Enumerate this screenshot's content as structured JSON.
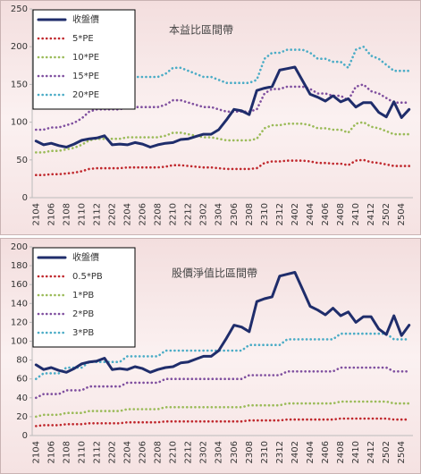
{
  "chart_data": [
    {
      "type": "line",
      "title": "本益比區間帶",
      "categories": [
        "2104",
        null,
        "2106",
        null,
        "2108",
        null,
        "2110",
        null,
        "2112",
        null,
        "2202",
        null,
        "2204",
        null,
        "2206",
        null,
        "2208",
        null,
        "2210",
        null,
        "2212",
        null,
        "2302",
        null,
        "2304",
        null,
        "2306",
        null,
        "2308",
        null,
        "2310",
        null,
        "2312",
        null,
        "2402",
        null,
        "2404",
        null,
        "2406",
        null,
        "2408",
        null,
        "2410",
        null,
        "2412",
        null,
        "2502",
        null,
        "2504",
        null
      ],
      "ylim": [
        0,
        250
      ],
      "yticks": [
        0,
        50,
        100,
        150,
        200,
        250
      ],
      "grid": false,
      "legend": "top-left",
      "series": [
        {
          "name": "收盤價",
          "color": "#1f2d6b",
          "style": "solid",
          "values": [
            75,
            70,
            72,
            69,
            67,
            71,
            76,
            78,
            79,
            82,
            70,
            71,
            70,
            73,
            71,
            67,
            70,
            72,
            73,
            77,
            78,
            81,
            84,
            84,
            90,
            103,
            117,
            115,
            110,
            142,
            145,
            147,
            169,
            171,
            173,
            155,
            137,
            133,
            128,
            135,
            127,
            131,
            120,
            126,
            126,
            113,
            107,
            127,
            106,
            117
          ]
        },
        {
          "name": "5*PE",
          "color": "#c0282d",
          "style": "dotted",
          "values": [
            30,
            30,
            31,
            31,
            32,
            33,
            35,
            38,
            39,
            39,
            39,
            39,
            40,
            40,
            40,
            40,
            40,
            41,
            43,
            43,
            42,
            41,
            40,
            40,
            39,
            38,
            38,
            38,
            38,
            39,
            46,
            48,
            48,
            49,
            49,
            49,
            48,
            46,
            46,
            45,
            45,
            43,
            49,
            50,
            47,
            46,
            44,
            42,
            42,
            42
          ]
        },
        {
          "name": "10*PE",
          "color": "#9bbb59",
          "style": "dotted",
          "values": [
            60,
            60,
            62,
            62,
            64,
            66,
            70,
            76,
            78,
            78,
            78,
            78,
            80,
            80,
            80,
            80,
            80,
            82,
            86,
            86,
            84,
            82,
            80,
            80,
            78,
            76,
            76,
            76,
            76,
            78,
            92,
            96,
            96,
            98,
            98,
            98,
            96,
            92,
            92,
            90,
            90,
            86,
            98,
            100,
            94,
            92,
            88,
            84,
            84,
            84
          ]
        },
        {
          "name": "15*PE",
          "color": "#7f4f9f",
          "style": "dotted",
          "values": [
            90,
            90,
            93,
            93,
            96,
            99,
            105,
            114,
            117,
            117,
            117,
            117,
            120,
            120,
            120,
            120,
            120,
            123,
            129,
            129,
            126,
            123,
            120,
            120,
            117,
            114,
            114,
            114,
            114,
            117,
            138,
            144,
            144,
            147,
            147,
            147,
            144,
            138,
            138,
            135,
            135,
            129,
            147,
            150,
            141,
            138,
            132,
            126,
            126,
            126
          ]
        },
        {
          "name": "20*PE",
          "color": "#4bacc6",
          "style": "dotted",
          "values": [
            120,
            120,
            124,
            124,
            128,
            132,
            140,
            152,
            156,
            156,
            156,
            156,
            160,
            160,
            160,
            160,
            160,
            164,
            172,
            172,
            168,
            164,
            160,
            160,
            156,
            152,
            152,
            152,
            152,
            156,
            184,
            192,
            192,
            196,
            196,
            196,
            192,
            184,
            184,
            180,
            180,
            172,
            196,
            200,
            188,
            184,
            176,
            168,
            168,
            168
          ]
        }
      ]
    },
    {
      "type": "line",
      "title": "股價淨值比區間帶",
      "categories": [
        "2104",
        null,
        "2106",
        null,
        "2108",
        null,
        "2110",
        null,
        "2112",
        null,
        "2202",
        null,
        "2204",
        null,
        "2206",
        null,
        "2208",
        null,
        "2210",
        null,
        "2212",
        null,
        "2302",
        null,
        "2304",
        null,
        "2306",
        null,
        "2308",
        null,
        "2310",
        null,
        "2312",
        null,
        "2402",
        null,
        "2404",
        null,
        "2406",
        null,
        "2408",
        null,
        "2410",
        null,
        "2412",
        null,
        "2502",
        null,
        "2504",
        null
      ],
      "ylim": [
        0,
        200
      ],
      "yticks": [
        0,
        20,
        40,
        60,
        80,
        100,
        120,
        140,
        160,
        180,
        200
      ],
      "grid": false,
      "legend": "top-left",
      "series": [
        {
          "name": "收盤價",
          "color": "#1f2d6b",
          "style": "solid",
          "values": [
            75,
            70,
            72,
            69,
            67,
            71,
            76,
            78,
            79,
            82,
            70,
            71,
            70,
            73,
            71,
            67,
            70,
            72,
            73,
            77,
            78,
            81,
            84,
            84,
            90,
            103,
            117,
            115,
            110,
            142,
            145,
            147,
            169,
            171,
            173,
            155,
            137,
            133,
            128,
            135,
            127,
            131,
            120,
            126,
            126,
            113,
            107,
            127,
            106,
            117
          ]
        },
        {
          "name": "0.5*PB",
          "color": "#c0282d",
          "style": "dotted",
          "values": [
            10,
            11,
            11,
            11,
            12,
            12,
            12,
            13,
            13,
            13,
            13,
            13,
            14,
            14,
            14,
            14,
            14,
            15,
            15,
            15,
            15,
            15,
            15,
            15,
            15,
            15,
            15,
            15,
            16,
            16,
            16,
            16,
            16,
            17,
            17,
            17,
            17,
            17,
            17,
            17,
            18,
            18,
            18,
            18,
            18,
            18,
            18,
            17,
            17,
            17
          ]
        },
        {
          "name": "1*PB",
          "color": "#9bbb59",
          "style": "dotted",
          "values": [
            20,
            22,
            22,
            22,
            24,
            24,
            24,
            26,
            26,
            26,
            26,
            26,
            28,
            28,
            28,
            28,
            28,
            30,
            30,
            30,
            30,
            30,
            30,
            30,
            30,
            30,
            30,
            30,
            32,
            32,
            32,
            32,
            32,
            34,
            34,
            34,
            34,
            34,
            34,
            34,
            36,
            36,
            36,
            36,
            36,
            36,
            36,
            34,
            34,
            34
          ]
        },
        {
          "name": "2*PB",
          "color": "#7f4f9f",
          "style": "dotted",
          "values": [
            40,
            44,
            44,
            44,
            48,
            48,
            48,
            52,
            52,
            52,
            52,
            52,
            56,
            56,
            56,
            56,
            56,
            60,
            60,
            60,
            60,
            60,
            60,
            60,
            60,
            60,
            60,
            60,
            64,
            64,
            64,
            64,
            64,
            68,
            68,
            68,
            68,
            68,
            68,
            68,
            72,
            72,
            72,
            72,
            72,
            72,
            72,
            68,
            68,
            68
          ]
        },
        {
          "name": "3*PB",
          "color": "#4bacc6",
          "style": "dotted",
          "values": [
            60,
            66,
            66,
            66,
            72,
            72,
            72,
            78,
            78,
            78,
            78,
            78,
            84,
            84,
            84,
            84,
            84,
            90,
            90,
            90,
            90,
            90,
            90,
            90,
            90,
            90,
            90,
            90,
            96,
            96,
            96,
            96,
            96,
            102,
            102,
            102,
            102,
            102,
            102,
            102,
            108,
            108,
            108,
            108,
            108,
            108,
            108,
            102,
            102,
            102
          ]
        }
      ]
    }
  ]
}
